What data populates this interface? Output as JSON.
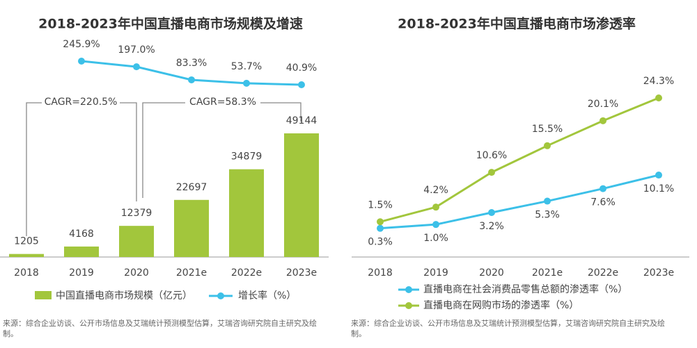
{
  "chart_data": [
    {
      "type": "bar",
      "title": "2018-2023年中国直播电商市场规模及增速",
      "categories": [
        "2018",
        "2019",
        "2020",
        "2021e",
        "2022e",
        "2023e"
      ],
      "series": [
        {
          "name": "中国直播电商市场规模（亿元）",
          "color": "#a2c63c",
          "type": "bar",
          "values": [
            1205,
            4168,
            12379,
            22697,
            34879,
            49144
          ]
        },
        {
          "name": "增长率（%）",
          "color": "#3cc0e8",
          "type": "line",
          "values": [
            null,
            245.9,
            197.0,
            83.3,
            53.7,
            40.9
          ],
          "value_labels": [
            null,
            "245.9%",
            "197.0%",
            "83.3%",
            "53.7%",
            "40.9%"
          ]
        }
      ],
      "annotations": [
        "CAGR=220.5%",
        "CAGR=58.3%"
      ],
      "source": "来源：综合企业访谈、公开市场信息及艾瑞统计预测模型估算，艾瑞咨询研究院自主研究及绘制。"
    },
    {
      "type": "line",
      "title": "2018-2023年中国直播电商市场渗透率",
      "categories": [
        "2018",
        "2019",
        "2020",
        "2021e",
        "2022e",
        "2023e"
      ],
      "series": [
        {
          "name": "直播电商在社会消费品零售总额的渗透率（%）",
          "color": "#3cc0e8",
          "values": [
            0.3,
            1.0,
            3.2,
            5.3,
            7.6,
            10.1
          ],
          "value_labels": [
            "0.3%",
            "1.0%",
            "3.2%",
            "5.3%",
            "7.6%",
            "10.1%"
          ]
        },
        {
          "name": "直播电商在网购市场的渗透率（%）",
          "color": "#a2c63c",
          "values": [
            1.5,
            4.2,
            10.6,
            15.5,
            20.1,
            24.3
          ],
          "value_labels": [
            "1.5%",
            "4.2%",
            "10.6%",
            "15.5%",
            "20.1%",
            "24.3%"
          ]
        }
      ],
      "source": "来源：综合企业访谈、公开市场信息及艾瑞统计预测模型估算，艾瑞咨询研究院自主研究及绘制。"
    }
  ]
}
